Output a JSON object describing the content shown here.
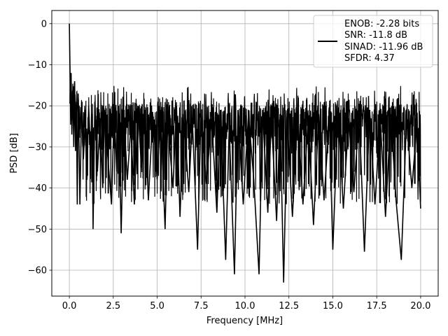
{
  "chart_data": {
    "type": "line",
    "title": "",
    "xlabel": "Frequency [MHz]",
    "ylabel": "PSD [dB]",
    "xlim": [
      -1.0,
      21.0
    ],
    "ylim": [
      -66.3,
      3.2
    ],
    "x_ticks": [
      0.0,
      2.5,
      5.0,
      7.5,
      10.0,
      12.5,
      15.0,
      17.5,
      20.0
    ],
    "x_tick_labels": [
      "0.0",
      "2.5",
      "5.0",
      "7.5",
      "10.0",
      "12.5",
      "15.0",
      "17.5",
      "20.0"
    ],
    "y_ticks": [
      0,
      -10,
      -20,
      -30,
      -40,
      -50,
      -60
    ],
    "y_tick_labels": [
      "0",
      "−10",
      "−20",
      "−30",
      "−40",
      "−50",
      "−60"
    ],
    "grid": true,
    "legend_position": "top-right",
    "legend_lines": [
      "ENOB: -2.28 bits",
      "SNR: -11.8 dB",
      "SINAD: -11.96 dB",
      "SFDR: 4.37"
    ],
    "series": [
      {
        "color": "#000000",
        "points": [
          [
            0.0,
            0.0
          ],
          [
            0.03,
            -9.0
          ],
          [
            0.06,
            -18.0
          ],
          [
            0.1,
            -12.0
          ],
          [
            0.14,
            -27.0
          ],
          [
            0.2,
            -16.0
          ],
          [
            0.25,
            -30.0
          ],
          [
            0.3,
            -14.0
          ],
          [
            0.35,
            -31.0
          ],
          [
            0.4,
            -19.0
          ],
          [
            0.45,
            -44.0
          ],
          [
            0.5,
            -17.0
          ],
          [
            0.55,
            -29.0
          ],
          [
            0.6,
            -44.0
          ],
          [
            0.7,
            -19.0
          ],
          [
            0.8,
            -33.0
          ],
          [
            0.9,
            -24.0
          ],
          [
            1.0,
            -38.0
          ],
          [
            1.1,
            -20.0
          ],
          [
            1.2,
            -31.0
          ],
          [
            1.3,
            -22.0
          ],
          [
            1.35,
            -50.0
          ],
          [
            1.45,
            -19.0
          ],
          [
            1.6,
            -36.0
          ],
          [
            1.75,
            -23.0
          ],
          [
            1.9,
            -40.0
          ],
          [
            2.0,
            -21.0
          ],
          [
            2.2,
            -33.0
          ],
          [
            2.4,
            -44.0
          ],
          [
            2.55,
            -21.0
          ],
          [
            2.7,
            -36.0
          ],
          [
            2.8,
            -20.0
          ],
          [
            2.95,
            -51.0
          ],
          [
            3.1,
            -22.0
          ],
          [
            3.3,
            -38.0
          ],
          [
            3.5,
            -25.0
          ],
          [
            3.7,
            -44.0
          ],
          [
            3.9,
            -20.0
          ],
          [
            4.1,
            -35.0
          ],
          [
            4.3,
            -21.0
          ],
          [
            4.5,
            -43.0
          ],
          [
            4.75,
            -22.0
          ],
          [
            5.0,
            -38.0
          ],
          [
            5.2,
            -21.0
          ],
          [
            5.45,
            -50.0
          ],
          [
            5.6,
            -24.0
          ],
          [
            5.9,
            -40.0
          ],
          [
            6.1,
            -20.0
          ],
          [
            6.3,
            -47.0
          ],
          [
            6.5,
            -22.0
          ],
          [
            6.8,
            -41.0
          ],
          [
            7.0,
            -23.0
          ],
          [
            7.3,
            -55.0
          ],
          [
            7.5,
            -21.0
          ],
          [
            7.8,
            -39.0
          ],
          [
            8.1,
            -23.0
          ],
          [
            8.4,
            -46.0
          ],
          [
            8.6,
            -21.0
          ],
          [
            8.9,
            -57.5
          ],
          [
            9.1,
            -25.0
          ],
          [
            9.4,
            -61.0
          ],
          [
            9.6,
            -21.0
          ],
          [
            9.9,
            -44.0
          ],
          [
            10.2,
            -22.0
          ],
          [
            10.5,
            -38.0
          ],
          [
            10.8,
            -61.0
          ],
          [
            11.0,
            -21.0
          ],
          [
            11.3,
            -46.0
          ],
          [
            11.5,
            -23.0
          ],
          [
            11.8,
            -48.0
          ],
          [
            12.0,
            -22.0
          ],
          [
            12.2,
            -63.0
          ],
          [
            12.4,
            -23.0
          ],
          [
            12.7,
            -47.0
          ],
          [
            13.0,
            -22.0
          ],
          [
            13.3,
            -44.0
          ],
          [
            13.6,
            -23.0
          ],
          [
            13.9,
            -49.0
          ],
          [
            14.2,
            -22.0
          ],
          [
            14.5,
            -43.0
          ],
          [
            14.8,
            -23.0
          ],
          [
            15.0,
            -55.0
          ],
          [
            15.3,
            -21.0
          ],
          [
            15.6,
            -45.0
          ],
          [
            15.9,
            -23.0
          ],
          [
            16.2,
            -41.0
          ],
          [
            16.5,
            -22.0
          ],
          [
            16.8,
            -55.5
          ],
          [
            17.1,
            -21.0
          ],
          [
            17.4,
            -44.0
          ],
          [
            17.7,
            -23.0
          ],
          [
            18.0,
            -47.0
          ],
          [
            18.3,
            -22.0
          ],
          [
            18.6,
            -43.0
          ],
          [
            18.9,
            -57.5
          ],
          [
            19.2,
            -23.0
          ],
          [
            19.5,
            -40.0
          ],
          [
            19.8,
            -24.0
          ],
          [
            20.0,
            -45.0
          ]
        ]
      }
    ]
  }
}
